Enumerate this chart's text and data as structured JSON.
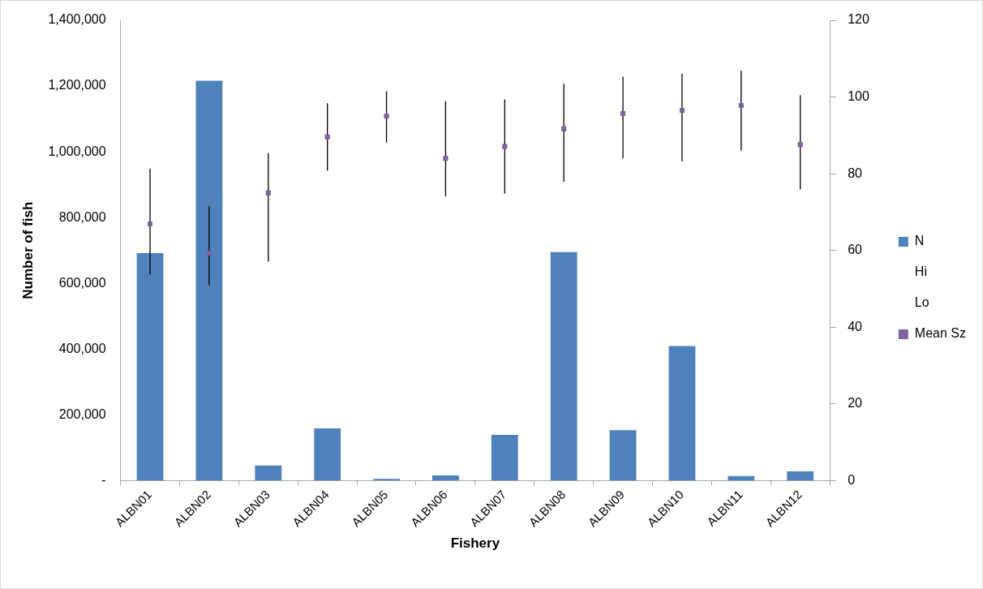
{
  "chart_data": {
    "type": "bar",
    "xlabel": "Fishery",
    "ylabel": "Number of fish",
    "categories": [
      "ALBN01",
      "ALBN02",
      "ALBN03",
      "ALBN04",
      "ALBN05",
      "ALBN06",
      "ALBN07",
      "ALBN08",
      "ALBN09",
      "ALBN10",
      "ALBN11",
      "ALBN12"
    ],
    "series": [
      {
        "name": "N",
        "color": "#4f81bd",
        "values": [
          692000,
          1216000,
          46000,
          159000,
          5000,
          16000,
          139000,
          695000,
          153000,
          409000,
          14000,
          28000
        ]
      },
      {
        "name": "Hi",
        "type": "scatter",
        "axis": "y2",
        "marker": "none",
        "color": "#000000",
        "values": [
          null,
          null,
          null,
          null,
          null,
          null,
          null,
          null,
          null,
          null,
          null,
          null
        ]
      },
      {
        "name": "Lo",
        "type": "scatter",
        "axis": "y2",
        "marker": "none",
        "color": "#000000",
        "values": [
          null,
          null,
          null,
          null,
          null,
          null,
          null,
          null,
          null,
          null,
          null,
          null
        ]
      },
      {
        "name": "Mean Sz",
        "type": "scatter",
        "axis": "y2",
        "marker": "square",
        "color": "#8064a2",
        "values": [
          66.9,
          59.3,
          75.0,
          89.6,
          95.0,
          84.0,
          87.1,
          91.7,
          95.7,
          96.5,
          97.8,
          87.6
        ],
        "errors": [
          [
            53.7,
            81.3
          ],
          [
            50.9,
            71.6
          ],
          [
            57.1,
            85.4
          ],
          [
            80.8,
            98.4
          ],
          [
            88.1,
            101.5
          ],
          [
            74.1,
            98.9
          ],
          [
            74.8,
            99.4
          ],
          [
            77.9,
            103.5
          ],
          [
            84.0,
            105.3
          ],
          [
            83.2,
            106.1
          ],
          [
            86.0,
            106.9
          ],
          [
            75.9,
            100.5
          ]
        ]
      }
    ],
    "ylim": [
      0,
      1400000
    ],
    "yticks": [
      {
        "value": 0,
        "label": "-"
      },
      {
        "value": 200000,
        "label": "200,000"
      },
      {
        "value": 400000,
        "label": "400,000"
      },
      {
        "value": 600000,
        "label": "600,000"
      },
      {
        "value": 800000,
        "label": "800,000"
      },
      {
        "value": 1000000,
        "label": "1,000,000"
      },
      {
        "value": 1200000,
        "label": "1,200,000"
      },
      {
        "value": 1400000,
        "label": "1,400,000"
      }
    ],
    "y2lim": [
      0,
      120
    ],
    "y2ticks": [
      0,
      20,
      40,
      60,
      80,
      100,
      120
    ],
    "legend": "right"
  }
}
